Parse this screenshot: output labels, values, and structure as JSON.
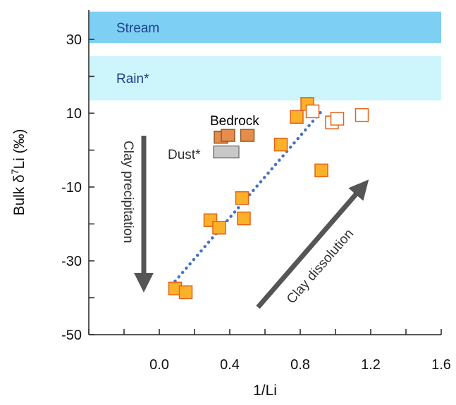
{
  "chart_data": {
    "type": "scatter",
    "xlabel": "1/Li",
    "ylabel_main": "Bulk δ",
    "ylabel_sup": "7",
    "ylabel_tail": "Li (‰)",
    "xlim": [
      -0.4,
      1.6
    ],
    "ylim": [
      -50,
      38
    ],
    "x_ticks": [
      0.0,
      0.4,
      0.8,
      1.2,
      1.6
    ],
    "x_tick_labels": [
      "0.0",
      "0.4",
      "0.8",
      "1.2",
      "1.6"
    ],
    "y_ticks": [
      30,
      10,
      -10,
      -30,
      -50
    ],
    "y_tick_labels": [
      "30",
      "10",
      "-10",
      "-30",
      "-50"
    ],
    "grid": false,
    "bands": [
      {
        "label": "Stream",
        "y_from": 29,
        "y_to": 37.5,
        "color": "#7ecff4",
        "label_color": "#1f3f8f"
      },
      {
        "label": "Rain*",
        "y_from": 13.5,
        "y_to": 25.5,
        "color": "#ccf6fb",
        "label_color": "#1f3f8f"
      }
    ],
    "series": [
      {
        "style": "filled-orange",
        "fill": "#fbb22a",
        "stroke": "#e2621b",
        "points": [
          {
            "x": 0.09,
            "y": -37.5
          },
          {
            "x": 0.15,
            "y": -38.5
          },
          {
            "x": 0.29,
            "y": -19
          },
          {
            "x": 0.34,
            "y": -21
          },
          {
            "x": 0.47,
            "y": -13
          },
          {
            "x": 0.48,
            "y": -18.5
          },
          {
            "x": 0.69,
            "y": 1.5
          },
          {
            "x": 0.78,
            "y": 9
          },
          {
            "x": 0.84,
            "y": 12.5
          },
          {
            "x": 0.92,
            "y": -5.5
          }
        ]
      },
      {
        "style": "open-orange",
        "fill": "#ffffff",
        "stroke": "#e2621b",
        "points": [
          {
            "x": 0.87,
            "y": 10.5
          },
          {
            "x": 0.98,
            "y": 7.5
          },
          {
            "x": 1.01,
            "y": 8.5
          },
          {
            "x": 1.15,
            "y": 9.5
          }
        ]
      },
      {
        "label": "Bedrock",
        "label_color": "#8a5a1e",
        "style": "bedrock",
        "fill": "#e58c4e",
        "stroke": "#8a5a1e",
        "points": [
          {
            "x": 0.35,
            "y": 3.5
          },
          {
            "x": 0.39,
            "y": 4
          },
          {
            "x": 0.5,
            "y": 4
          }
        ]
      },
      {
        "label": "Dust*",
        "label_color": "#555555",
        "style": "dust",
        "fill": "#c8c8c8",
        "stroke": "#666666",
        "points": [
          {
            "x": 0.38,
            "y": -0.5
          }
        ]
      }
    ],
    "trendline": {
      "x": [
        0.09,
        0.92
      ],
      "y": [
        -35.5,
        10.5
      ],
      "color": "#4472c4",
      "style": "dotted"
    },
    "annotations": [
      {
        "text": "Clay precipitation",
        "arrow": "down",
        "color": "#555555"
      },
      {
        "text": "Clay dissolution",
        "arrow": "up-right",
        "color": "#555555"
      }
    ]
  }
}
